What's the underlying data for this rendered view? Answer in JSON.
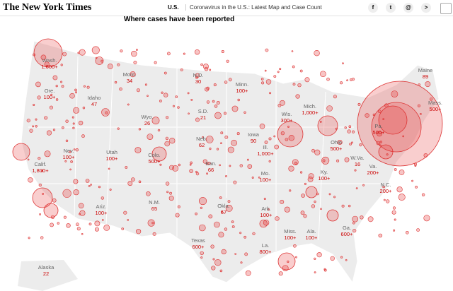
{
  "header": {
    "logo": "The New York Times",
    "section": "U.S.",
    "headline": "Coronavirus in the U.S.: Latest Map and Case Count"
  },
  "map": {
    "title": "Where cases have been reported",
    "states": [
      {
        "name": "Wash.",
        "count": "1,600+"
      },
      {
        "name": "Ore.",
        "count": "100+"
      },
      {
        "name": "Idaho",
        "count": "47"
      },
      {
        "name": "Mont.",
        "count": "34"
      },
      {
        "name": "N.D.",
        "count": "30"
      },
      {
        "name": "Minn.",
        "count": "100+"
      },
      {
        "name": "Wyo.",
        "count": "26"
      },
      {
        "name": "S.D.",
        "count": "21"
      },
      {
        "name": "Nev.",
        "count": "100+"
      },
      {
        "name": "Utah",
        "count": "100+"
      },
      {
        "name": "Colo.",
        "count": "500+"
      },
      {
        "name": "Neb.",
        "count": "62"
      },
      {
        "name": "Iowa",
        "count": "90"
      },
      {
        "name": "Wis.",
        "count": "300+"
      },
      {
        "name": "Mich.",
        "count": "1,000+"
      },
      {
        "name": "Ill.",
        "count": "1,000+"
      },
      {
        "name": "Ohio",
        "count": "500+"
      },
      {
        "name": "Pa.",
        "count": "500+"
      },
      {
        "name": "Maine",
        "count": "89"
      },
      {
        "name": "Mass.",
        "count": "500+"
      },
      {
        "name": "Calif.",
        "count": "1,800+"
      },
      {
        "name": "Kan.",
        "count": "66"
      },
      {
        "name": "Mo.",
        "count": "100+"
      },
      {
        "name": "W.Va.",
        "count": "16"
      },
      {
        "name": "Va.",
        "count": "200+"
      },
      {
        "name": "Ky.",
        "count": "100+"
      },
      {
        "name": "N.C.",
        "count": "200+"
      },
      {
        "name": "Ariz.",
        "count": "100+"
      },
      {
        "name": "N.M.",
        "count": "65"
      },
      {
        "name": "Okla.",
        "count": "67"
      },
      {
        "name": "Ark.",
        "count": "100+"
      },
      {
        "name": "Miss.",
        "count": "100+"
      },
      {
        "name": "Ala.",
        "count": "100+"
      },
      {
        "name": "Ga.",
        "count": "600+"
      },
      {
        "name": "La.",
        "count": "800+"
      },
      {
        "name": "Texas",
        "count": "600+"
      },
      {
        "name": "Alaska",
        "count": "22"
      }
    ]
  }
}
